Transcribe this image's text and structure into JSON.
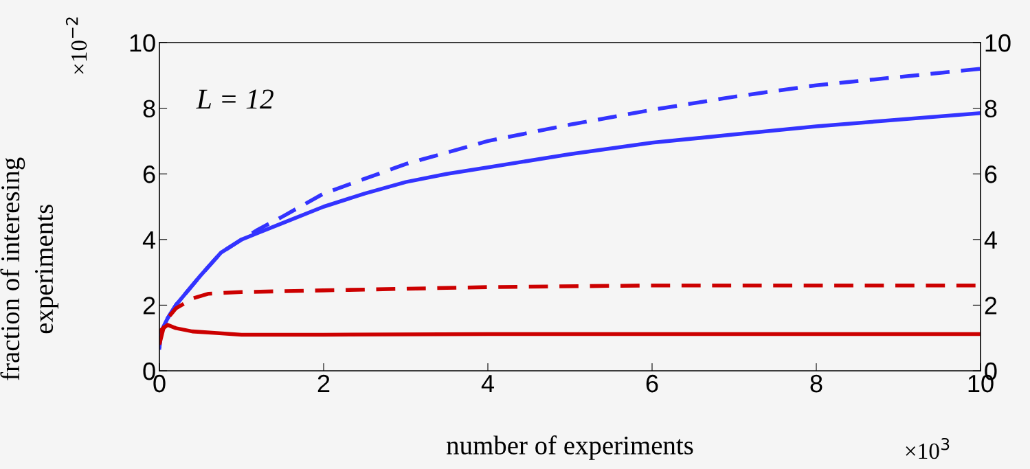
{
  "chart_data": {
    "type": "line",
    "xlabel": "number of experiments",
    "ylabel": "fraction of interesing\nexperiments",
    "annotations": [
      "L = 12",
      "×10$^{−2}$",
      "×10$^{3}$"
    ],
    "xlim": [
      0,
      10
    ],
    "xticks": [
      0,
      2,
      4,
      6,
      8,
      10
    ],
    "ylim": [
      0,
      10
    ],
    "yticks": [
      0,
      2,
      4,
      6,
      8,
      10
    ],
    "y2lim": [
      0,
      10
    ],
    "y2ticks": [
      0,
      2,
      4,
      6,
      8,
      10
    ],
    "series": [
      {
        "color": "#3333ff",
        "line_style": "dashed",
        "x": [
          0,
          0.02,
          0.1,
          0.2,
          0.3,
          0.5,
          0.75,
          1.0,
          1.2,
          1.5,
          2,
          3,
          4,
          5,
          6,
          7,
          8,
          9,
          10
        ],
        "values": [
          0.7,
          1.2,
          1.6,
          2.0,
          2.3,
          2.9,
          3.6,
          4.0,
          4.3,
          4.7,
          5.4,
          6.3,
          7.0,
          7.5,
          7.95,
          8.35,
          8.7,
          8.95,
          9.2
        ]
      },
      {
        "color": "#3333ff",
        "line_style": "solid",
        "x": [
          0,
          0.02,
          0.1,
          0.2,
          0.3,
          0.5,
          0.75,
          1.0,
          1.2,
          1.5,
          2,
          2.5,
          3,
          3.5,
          4,
          5,
          6,
          7,
          8,
          9,
          10
        ],
        "values": [
          0.7,
          1.2,
          1.6,
          2.0,
          2.3,
          2.9,
          3.6,
          4.0,
          4.2,
          4.5,
          5.0,
          5.4,
          5.75,
          6.0,
          6.2,
          6.6,
          6.95,
          7.2,
          7.45,
          7.65,
          7.85
        ]
      },
      {
        "color": "#cc0000",
        "line_style": "dashed",
        "x": [
          0,
          0.05,
          0.1,
          0.2,
          0.4,
          0.6,
          1,
          2,
          3,
          4,
          6,
          10
        ],
        "values": [
          0.8,
          1.3,
          1.6,
          1.9,
          2.2,
          2.35,
          2.4,
          2.45,
          2.5,
          2.55,
          2.6,
          2.6
        ]
      },
      {
        "color": "#cc0000",
        "line_style": "solid",
        "x": [
          0,
          0.1,
          0.2,
          0.4,
          0.7,
          1,
          2,
          4,
          6,
          10
        ],
        "values": [
          1.2,
          1.4,
          1.3,
          1.2,
          1.15,
          1.1,
          1.1,
          1.12,
          1.12,
          1.12
        ]
      }
    ]
  }
}
